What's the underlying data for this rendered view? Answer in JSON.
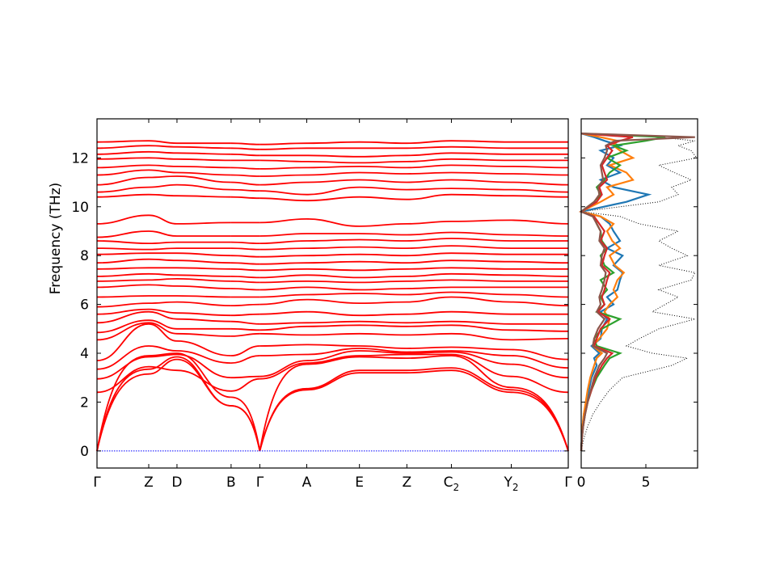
{
  "chart_data": [
    {
      "type": "line",
      "subtype": "phonon-band-structure",
      "ylabel": "Frequency (THz)",
      "ylim": [
        -0.7,
        13.6
      ],
      "yticks": [
        0,
        2,
        4,
        6,
        8,
        10,
        12
      ],
      "grid": false,
      "line_color": "#ff0000",
      "zero_line_color": "#0000ff",
      "path_segments": [
        [
          "Γ",
          "Z",
          "D",
          "B"
        ],
        [
          "Γ",
          "A",
          "E",
          "Z",
          "C₂",
          "Y₂",
          "Γ"
        ]
      ],
      "kpoints": [
        {
          "label": "Γ",
          "sub": ""
        },
        {
          "label": "Z",
          "sub": ""
        },
        {
          "label": "D",
          "sub": ""
        },
        {
          "label": "B",
          "sub": ""
        },
        {
          "label": "Γ",
          "sub": ""
        },
        {
          "label": "A",
          "sub": ""
        },
        {
          "label": "E",
          "sub": ""
        },
        {
          "label": "Z",
          "sub": ""
        },
        {
          "label": "C",
          "sub": "2"
        },
        {
          "label": "Y",
          "sub": "2"
        },
        {
          "label": "Γ",
          "sub": ""
        }
      ],
      "kpoint_distance": [
        0,
        1.08,
        1.67,
        2.8,
        3.4,
        4.38,
        5.48,
        6.47,
        7.4,
        8.65,
        9.84
      ],
      "series": [
        {
          "values": [
            0,
            3.15,
            3.75,
            1.85,
            0,
            2.5,
            3.2,
            3.2,
            3.3,
            2.4,
            0
          ]
        },
        {
          "values": [
            0,
            3.35,
            3.85,
            1.85,
            0,
            2.55,
            3.3,
            3.3,
            3.4,
            2.5,
            0
          ]
        },
        {
          "values": [
            0,
            3.9,
            4.0,
            2.2,
            0,
            3.55,
            3.85,
            3.8,
            3.9,
            2.6,
            0
          ]
        },
        {
          "values": [
            2.4,
            3.45,
            3.3,
            2.45,
            2.95,
            3.6,
            3.9,
            3.95,
            3.95,
            3.05,
            2.4
          ]
        },
        {
          "values": [
            2.95,
            3.85,
            3.95,
            3.0,
            3.05,
            3.7,
            4.1,
            4.0,
            4.05,
            3.55,
            3.0
          ]
        },
        {
          "values": [
            3.35,
            4.3,
            4.1,
            3.6,
            3.9,
            3.95,
            4.2,
            4.05,
            4.1,
            3.9,
            3.4
          ]
        },
        {
          "values": [
            3.7,
            5.2,
            4.5,
            3.9,
            4.3,
            4.35,
            4.3,
            4.2,
            4.25,
            4.15,
            3.75
          ]
        },
        {
          "values": [
            4.55,
            5.25,
            4.8,
            4.7,
            4.8,
            4.75,
            4.8,
            4.75,
            4.8,
            4.55,
            4.6
          ]
        },
        {
          "values": [
            4.85,
            5.35,
            5.0,
            5.0,
            4.95,
            5.1,
            5.15,
            5.1,
            5.15,
            4.95,
            4.9
          ]
        },
        {
          "values": [
            5.25,
            5.7,
            5.4,
            5.3,
            5.2,
            5.25,
            5.3,
            5.25,
            5.3,
            5.2,
            5.2
          ]
        },
        {
          "values": [
            5.6,
            5.8,
            5.65,
            5.55,
            5.6,
            5.7,
            5.55,
            5.6,
            5.7,
            5.6,
            5.6
          ]
        },
        {
          "values": [
            5.9,
            6.05,
            6.1,
            5.95,
            6.0,
            6.2,
            6.05,
            6.1,
            6.3,
            6.1,
            5.95
          ]
        },
        {
          "values": [
            6.3,
            6.35,
            6.35,
            6.3,
            6.3,
            6.4,
            6.45,
            6.4,
            6.5,
            6.4,
            6.3
          ]
        },
        {
          "values": [
            6.7,
            6.8,
            6.75,
            6.65,
            6.6,
            6.7,
            6.6,
            6.65,
            6.7,
            6.7,
            6.7
          ]
        },
        {
          "values": [
            6.95,
            7.0,
            7.05,
            6.95,
            6.9,
            6.95,
            6.9,
            6.95,
            7.0,
            6.95,
            6.95
          ]
        },
        {
          "values": [
            7.15,
            7.25,
            7.2,
            7.15,
            7.1,
            7.2,
            7.1,
            7.15,
            7.25,
            7.2,
            7.15
          ]
        },
        {
          "values": [
            7.45,
            7.5,
            7.5,
            7.45,
            7.4,
            7.45,
            7.4,
            7.45,
            7.5,
            7.45,
            7.45
          ]
        },
        {
          "values": [
            7.7,
            7.85,
            7.8,
            7.7,
            7.65,
            7.7,
            7.75,
            7.7,
            7.8,
            7.75,
            7.7
          ]
        },
        {
          "values": [
            8.05,
            8.1,
            8.1,
            8.0,
            7.95,
            8.0,
            8.05,
            8.0,
            8.1,
            8.05,
            8.05
          ]
        },
        {
          "values": [
            8.3,
            8.25,
            8.3,
            8.3,
            8.25,
            8.3,
            8.35,
            8.3,
            8.4,
            8.3,
            8.3
          ]
        },
        {
          "values": [
            8.6,
            8.5,
            8.55,
            8.55,
            8.5,
            8.6,
            8.65,
            8.6,
            8.7,
            8.6,
            8.6
          ]
        },
        {
          "values": [
            8.75,
            9.0,
            8.8,
            8.8,
            8.8,
            8.9,
            8.9,
            8.85,
            8.95,
            8.85,
            8.8
          ]
        },
        {
          "values": [
            9.3,
            9.65,
            9.3,
            9.35,
            9.35,
            9.5,
            9.2,
            9.3,
            9.4,
            9.45,
            9.3
          ]
        },
        {
          "values": [
            10.4,
            10.5,
            10.45,
            10.4,
            10.35,
            10.25,
            10.4,
            10.3,
            10.5,
            10.45,
            10.4
          ]
        },
        {
          "values": [
            10.6,
            10.8,
            10.9,
            10.7,
            10.65,
            10.5,
            10.8,
            10.7,
            10.75,
            10.7,
            10.6
          ]
        },
        {
          "values": [
            10.9,
            11.2,
            11.25,
            11.0,
            10.9,
            11.0,
            11.1,
            11.0,
            11.1,
            11.0,
            10.9
          ]
        },
        {
          "values": [
            11.3,
            11.5,
            11.4,
            11.3,
            11.25,
            11.3,
            11.4,
            11.35,
            11.4,
            11.35,
            11.3
          ]
        },
        {
          "values": [
            11.6,
            11.7,
            11.65,
            11.6,
            11.55,
            11.6,
            11.65,
            11.6,
            11.7,
            11.65,
            11.6
          ]
        },
        {
          "values": [
            11.95,
            12.0,
            11.95,
            11.9,
            11.9,
            11.85,
            11.8,
            11.85,
            11.95,
            11.9,
            11.9
          ]
        },
        {
          "values": [
            12.15,
            12.25,
            12.2,
            12.15,
            12.1,
            12.1,
            12.05,
            12.1,
            12.2,
            12.15,
            12.15
          ]
        },
        {
          "values": [
            12.4,
            12.5,
            12.45,
            12.4,
            12.35,
            12.4,
            12.4,
            12.4,
            12.45,
            12.4,
            12.4
          ]
        },
        {
          "values": [
            12.65,
            12.7,
            12.6,
            12.6,
            12.55,
            12.6,
            12.65,
            12.6,
            12.7,
            12.65,
            12.65
          ]
        }
      ]
    },
    {
      "type": "line",
      "subtype": "phonon-DOS",
      "xlim": [
        0,
        9
      ],
      "xticks": [
        0,
        5
      ],
      "ylim": [
        -0.7,
        13.6
      ],
      "total_color": "#000000",
      "grid": false,
      "y": [
        0,
        0.5,
        1,
        1.5,
        2,
        2.5,
        3,
        3.5,
        3.8,
        4,
        4.3,
        4.6,
        5,
        5.4,
        5.7,
        6,
        6.3,
        6.6,
        7,
        7.3,
        7.6,
        8,
        8.3,
        8.6,
        9,
        9.3,
        9.6,
        9.8,
        10.2,
        10.5,
        10.8,
        11.1,
        11.4,
        11.7,
        12,
        12.3,
        12.5,
        12.7,
        12.85,
        13.0
      ],
      "series": [
        {
          "color": "#000000",
          "style": "dotted",
          "values": [
            0,
            0.2,
            0.5,
            0.9,
            1.5,
            2.2,
            3.2,
            7.0,
            8.2,
            5.5,
            3.5,
            4.5,
            6.0,
            8.8,
            5.5,
            6.5,
            7.5,
            6.0,
            8.5,
            8.8,
            6.0,
            8.2,
            7.0,
            6.0,
            7.5,
            4.5,
            3.0,
            0,
            6.0,
            7.5,
            7.0,
            8.5,
            7.2,
            6.0,
            9.0,
            8.5,
            7.5,
            8.8,
            6.0,
            0
          ]
        },
        {
          "color": "#1f77b4",
          "style": "solid",
          "values": [
            0,
            0.05,
            0.1,
            0.2,
            0.4,
            0.6,
            0.8,
            1.2,
            1.0,
            1.4,
            0.8,
            1.5,
            1.6,
            2.0,
            1.5,
            2.5,
            2.0,
            2.8,
            3.0,
            3.2,
            2.5,
            3.2,
            2.0,
            3.0,
            2.5,
            2.2,
            1.5,
            0,
            3.5,
            5.2,
            2.5,
            1.5,
            3.0,
            2.0,
            2.5,
            1.5,
            3.0,
            1.8,
            1.0,
            0
          ]
        },
        {
          "color": "#ff7f0e",
          "style": "solid",
          "values": [
            0,
            0.05,
            0.1,
            0.2,
            0.35,
            0.5,
            0.7,
            1.0,
            1.2,
            1.6,
            0.9,
            1.4,
            2.0,
            2.2,
            1.8,
            2.2,
            2.8,
            2.5,
            2.8,
            3.3,
            2.6,
            2.2,
            3.0,
            2.4,
            2.0,
            2.5,
            1.5,
            0,
            1.5,
            2.5,
            2.0,
            4.0,
            3.5,
            2.2,
            4.0,
            3.0,
            2.5,
            2.8,
            1.5,
            0
          ]
        },
        {
          "color": "#2ca02c",
          "style": "solid",
          "values": [
            0,
            0.05,
            0.15,
            0.3,
            0.5,
            0.8,
            1.2,
            1.8,
            2.2,
            3.0,
            1.2,
            1.0,
            1.6,
            3.0,
            1.2,
            1.8,
            1.5,
            2.0,
            1.5,
            2.5,
            1.8,
            1.5,
            2.0,
            1.6,
            1.5,
            1.2,
            1.0,
            0,
            1.0,
            1.5,
            1.2,
            1.8,
            2.2,
            3.0,
            2.0,
            3.5,
            2.5,
            5.0,
            6.5,
            0
          ]
        },
        {
          "color": "#d62728",
          "style": "solid",
          "values": [
            0,
            0.05,
            0.15,
            0.3,
            0.5,
            0.8,
            1.1,
            1.6,
            2.0,
            2.4,
            1.0,
            1.2,
            1.5,
            2.2,
            1.3,
            1.8,
            1.6,
            1.8,
            2.0,
            2.2,
            1.6,
            1.8,
            2.0,
            1.5,
            1.8,
            1.4,
            1.0,
            0,
            1.2,
            1.6,
            1.4,
            2.0,
            1.8,
            1.6,
            2.0,
            2.4,
            2.0,
            3.0,
            4.0,
            0
          ]
        },
        {
          "color": "#8c564b",
          "style": "solid",
          "values": [
            0,
            0.05,
            0.15,
            0.3,
            0.5,
            0.75,
            1.0,
            1.4,
            1.8,
            2.0,
            0.9,
            1.0,
            1.3,
            1.8,
            1.2,
            1.5,
            1.4,
            1.6,
            1.8,
            1.9,
            1.5,
            1.6,
            1.8,
            1.4,
            1.5,
            1.2,
            0.9,
            0,
            1.0,
            1.4,
            1.3,
            1.7,
            1.6,
            1.5,
            1.8,
            2.0,
            1.9,
            2.6,
            8.8,
            0
          ]
        }
      ]
    }
  ],
  "text": {
    "ylabel": "Frequency (THz)",
    "dos_xtick_0": "0",
    "dos_xtick_5": "5"
  }
}
